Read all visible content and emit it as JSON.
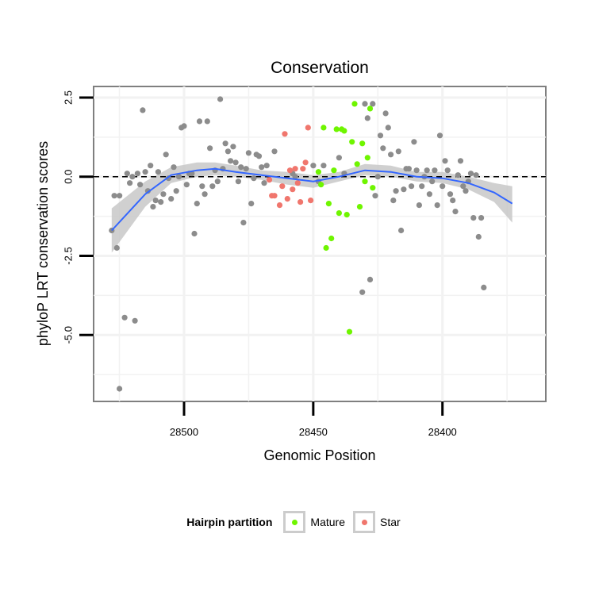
{
  "chart_data": {
    "type": "scatter",
    "title": "Conservation",
    "xlabel": "Genomic Position",
    "ylabel": "phyloP LRT conservation scores",
    "x_reversed": true,
    "xlim": [
      28535,
      28360
    ],
    "ylim": [
      -7.1,
      2.85
    ],
    "x_ticks": [
      28500,
      28450,
      28400
    ],
    "y_ticks": [
      2.5,
      0.0,
      -2.5,
      -5.0
    ],
    "y_tick_labels": [
      "2.5",
      "0.0",
      "-2.5",
      "-5.0"
    ],
    "x_tick_labels": [
      "28500",
      "28450",
      "28400"
    ],
    "reference_line": {
      "y": 0,
      "style": "dashed"
    },
    "grid": true,
    "legend": {
      "title": "Hairpin partition",
      "position": "bottom",
      "entries": [
        {
          "name": "Mature",
          "color": "#6ff500"
        },
        {
          "name": "Star",
          "color": "#f0766d"
        }
      ]
    },
    "colors": {
      "other": "#8c8c8c",
      "smooth": "#3366ff",
      "ribbon": "#c8c8c8"
    },
    "series": [
      {
        "name": "",
        "color": "#8c8c8c",
        "points": [
          [
            28528,
            -1.7
          ],
          [
            28527,
            -0.6
          ],
          [
            28526,
            -2.25
          ],
          [
            28525,
            -6.7
          ],
          [
            28525,
            -0.6
          ],
          [
            28523,
            -4.45
          ],
          [
            28522,
            0.1
          ],
          [
            28521,
            -0.2
          ],
          [
            28520,
            0.0
          ],
          [
            28519,
            -4.55
          ],
          [
            28518,
            0.1
          ],
          [
            28517,
            -0.25
          ],
          [
            28516,
            2.1
          ],
          [
            28515,
            0.15
          ],
          [
            28514,
            -0.45
          ],
          [
            28513,
            0.35
          ],
          [
            28512,
            -0.95
          ],
          [
            28511,
            -0.75
          ],
          [
            28510,
            0.15
          ],
          [
            28509,
            -0.8
          ],
          [
            28508,
            -0.55
          ],
          [
            28507,
            0.7
          ],
          [
            28506,
            -0.05
          ],
          [
            28505,
            -0.7
          ],
          [
            28504,
            0.3
          ],
          [
            28503,
            -0.45
          ],
          [
            28502,
            0.0
          ],
          [
            28501,
            1.55
          ],
          [
            28500,
            1.6
          ],
          [
            28499,
            -0.25
          ],
          [
            28498,
            0.1
          ],
          [
            28497,
            0.1
          ],
          [
            28496,
            -1.8
          ],
          [
            28495,
            -0.85
          ],
          [
            28494,
            1.75
          ],
          [
            28493,
            -0.3
          ],
          [
            28492,
            -0.55
          ],
          [
            28491,
            1.75
          ],
          [
            28490,
            0.9
          ],
          [
            28489,
            -0.3
          ],
          [
            28488,
            0.2
          ],
          [
            28487,
            -0.15
          ],
          [
            28486,
            2.45
          ],
          [
            28485,
            0.25
          ],
          [
            28484,
            1.05
          ],
          [
            28483,
            0.8
          ],
          [
            28482,
            0.5
          ],
          [
            28481,
            0.95
          ],
          [
            28480,
            0.45
          ],
          [
            28479,
            -0.15
          ],
          [
            28478,
            0.3
          ],
          [
            28477,
            -1.45
          ],
          [
            28476,
            0.25
          ],
          [
            28475,
            0.75
          ],
          [
            28474,
            -0.85
          ],
          [
            28473,
            -0.05
          ],
          [
            28472,
            0.7
          ],
          [
            28471,
            0.65
          ],
          [
            28470,
            0.3
          ],
          [
            28469,
            -0.2
          ],
          [
            28468,
            0.35
          ],
          [
            28465,
            0.8
          ],
          [
            28458,
            0.1
          ],
          [
            28457,
            0.0
          ],
          [
            28450,
            0.35
          ],
          [
            28448,
            -0.15
          ],
          [
            28446,
            0.35
          ],
          [
            28440,
            0.6
          ],
          [
            28438,
            0.1
          ],
          [
            28431,
            -3.65
          ],
          [
            28430,
            2.3
          ],
          [
            28429,
            1.85
          ],
          [
            28428,
            -3.25
          ],
          [
            28427,
            2.3
          ],
          [
            28426,
            -0.6
          ],
          [
            28425,
            0.0
          ],
          [
            28424,
            1.3
          ],
          [
            28423,
            0.9
          ],
          [
            28422,
            2.0
          ],
          [
            28421,
            1.55
          ],
          [
            28420,
            0.7
          ],
          [
            28419,
            -0.75
          ],
          [
            28418,
            -0.45
          ],
          [
            28417,
            0.8
          ],
          [
            28416,
            -1.7
          ],
          [
            28415,
            -0.4
          ],
          [
            28414,
            0.25
          ],
          [
            28413,
            0.25
          ],
          [
            28412,
            -0.3
          ],
          [
            28411,
            1.1
          ],
          [
            28410,
            0.2
          ],
          [
            28409,
            -0.9
          ],
          [
            28408,
            -0.3
          ],
          [
            28407,
            0.0
          ],
          [
            28406,
            0.2
          ],
          [
            28405,
            -0.55
          ],
          [
            28404,
            -0.15
          ],
          [
            28403,
            0.2
          ],
          [
            28402,
            -0.9
          ],
          [
            28401,
            1.3
          ],
          [
            28400,
            -0.3
          ],
          [
            28399,
            0.5
          ],
          [
            28398,
            0.2
          ],
          [
            28397,
            -0.55
          ],
          [
            28396,
            -0.75
          ],
          [
            28395,
            -1.1
          ],
          [
            28394,
            0.05
          ],
          [
            28393,
            0.5
          ],
          [
            28392,
            -0.3
          ],
          [
            28391,
            -0.45
          ],
          [
            28390,
            -0.15
          ],
          [
            28389,
            0.1
          ],
          [
            28388,
            -1.3
          ],
          [
            28387,
            0.05
          ],
          [
            28386,
            -1.9
          ],
          [
            28385,
            -1.3
          ],
          [
            28384,
            -3.5
          ]
        ]
      },
      {
        "name": "Star",
        "color": "#f0766d",
        "points": [
          [
            28467,
            -0.1
          ],
          [
            28466,
            -0.6
          ],
          [
            28465,
            -0.6
          ],
          [
            28463,
            -0.9
          ],
          [
            28462,
            -0.3
          ],
          [
            28461,
            1.35
          ],
          [
            28460,
            -0.7
          ],
          [
            28459,
            0.2
          ],
          [
            28458,
            -0.4
          ],
          [
            28457,
            0.25
          ],
          [
            28456,
            -0.2
          ],
          [
            28455,
            -0.8
          ],
          [
            28454,
            0.25
          ],
          [
            28453,
            0.45
          ],
          [
            28452,
            1.55
          ],
          [
            28451,
            -0.75
          ]
        ]
      },
      {
        "name": "Mature",
        "color": "#6ff500",
        "points": [
          [
            28448,
            0.15
          ],
          [
            28447,
            -0.25
          ],
          [
            28446,
            1.55
          ],
          [
            28445,
            -2.25
          ],
          [
            28444,
            -0.85
          ],
          [
            28443,
            -1.95
          ],
          [
            28442,
            0.2
          ],
          [
            28441,
            1.5
          ],
          [
            28440,
            -1.15
          ],
          [
            28439,
            1.5
          ],
          [
            28438,
            1.45
          ],
          [
            28437,
            -1.2
          ],
          [
            28436,
            -4.9
          ],
          [
            28435,
            1.1
          ],
          [
            28434,
            2.3
          ],
          [
            28433,
            0.4
          ],
          [
            28432,
            -0.95
          ],
          [
            28431,
            1.05
          ],
          [
            28430,
            -0.15
          ],
          [
            28429,
            0.6
          ],
          [
            28428,
            2.15
          ],
          [
            28427,
            -0.35
          ]
        ]
      }
    ],
    "smooth": {
      "x": [
        28528,
        28515,
        28505,
        28495,
        28488,
        28480,
        28470,
        28460,
        28450,
        28440,
        28430,
        28420,
        28410,
        28400,
        28390,
        28380,
        28373
      ],
      "y": [
        -1.7,
        -0.55,
        0.05,
        0.2,
        0.25,
        0.15,
        0.05,
        -0.05,
        -0.15,
        0.0,
        0.2,
        0.15,
        0.0,
        -0.05,
        -0.2,
        -0.5,
        -0.85
      ],
      "lower": [
        -2.4,
        -0.95,
        -0.2,
        0.0,
        0.05,
        0.0,
        -0.1,
        -0.25,
        -0.35,
        -0.15,
        0.05,
        0.0,
        -0.15,
        -0.2,
        -0.4,
        -0.8,
        -1.45
      ],
      "upper": [
        -1.0,
        -0.15,
        0.3,
        0.45,
        0.45,
        0.35,
        0.2,
        0.15,
        0.05,
        0.15,
        0.4,
        0.35,
        0.15,
        0.15,
        0.0,
        -0.2,
        -0.3
      ]
    }
  }
}
